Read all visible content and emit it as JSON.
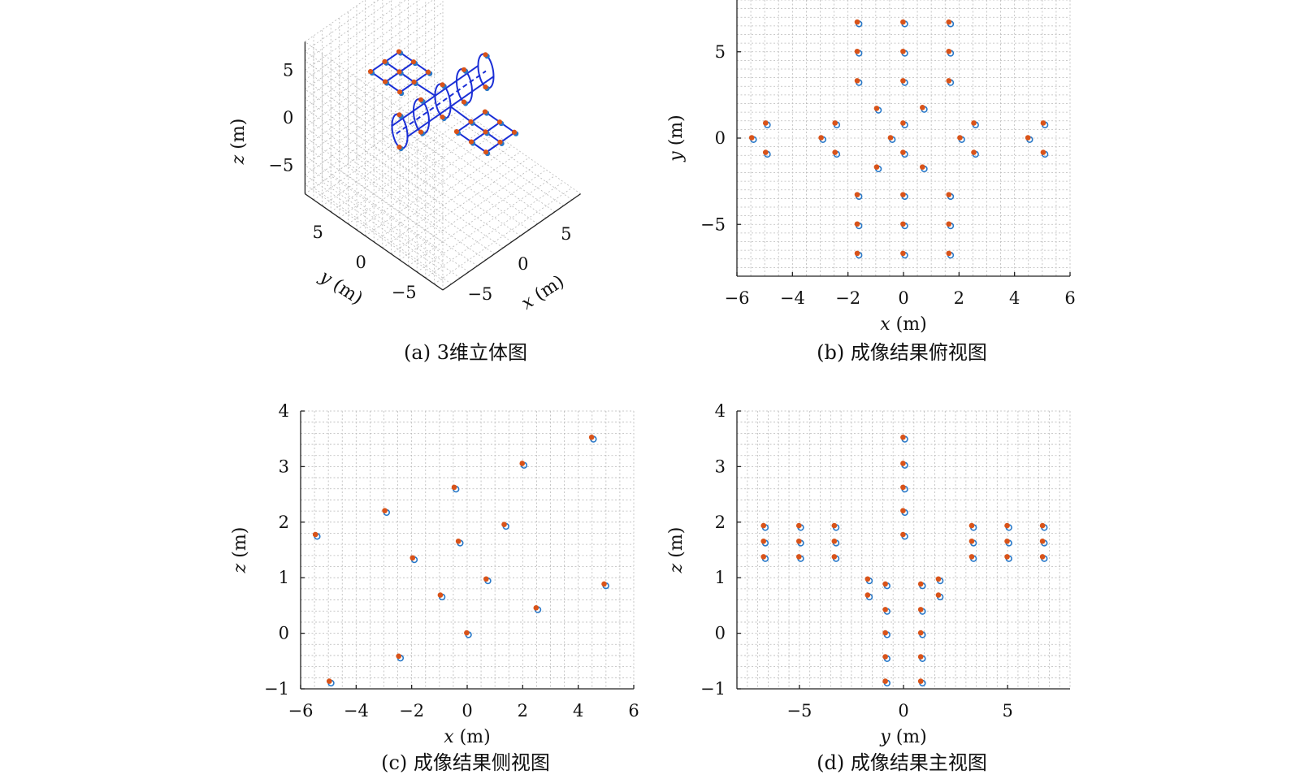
{
  "captions": {
    "a": "(a) 3维立体图",
    "b": "(b) 成像结果俯视图",
    "c": "(c) 成像结果侧视图",
    "d": "(d) 成像结果主视图"
  },
  "colors": {
    "estimated": "#2878c8",
    "true": "#d95319",
    "frame": "#1b2fd6",
    "grid": "#b9b9b9"
  },
  "chart_data": [
    {
      "id": "a",
      "type": "scatter",
      "subtype": "3d",
      "title": "(a) 3维立体图",
      "xlabel": "x (m)",
      "ylabel": "y (m)",
      "zlabel": "z (m)",
      "xlim": [
        -8,
        8
      ],
      "ylim": [
        -8,
        8
      ],
      "zlim": [
        -8,
        8
      ],
      "xticks": [
        -5,
        0,
        5
      ],
      "yticks": [
        -5,
        0,
        5
      ],
      "zticks": [
        -5,
        0,
        5
      ],
      "grid": true,
      "note_series": [
        "reconstructed points",
        "true points",
        "target wireframe"
      ]
    },
    {
      "id": "b",
      "type": "scatter",
      "title": "(b) 成像结果俯视图",
      "xlabel": "x (m)",
      "ylabel": "y (m)",
      "xlim": [
        -6,
        6
      ],
      "ylim": [
        -8,
        8
      ],
      "xticks": [
        -6,
        -4,
        -2,
        0,
        2,
        4,
        6
      ],
      "yticks": [
        -5,
        0,
        5
      ],
      "grid": true,
      "points": [
        [
          -1.65,
          6.7
        ],
        [
          0,
          6.7
        ],
        [
          1.65,
          6.7
        ],
        [
          -1.65,
          5
        ],
        [
          0,
          5
        ],
        [
          1.65,
          5
        ],
        [
          -1.65,
          3.3
        ],
        [
          0,
          3.3
        ],
        [
          1.65,
          3.3
        ],
        [
          -0.95,
          1.7
        ],
        [
          0.7,
          1.75
        ],
        [
          0,
          0.85
        ],
        [
          -5.45,
          0
        ],
        [
          -2.95,
          0
        ],
        [
          -0.45,
          0
        ],
        [
          2.05,
          0
        ],
        [
          4.5,
          0
        ],
        [
          -4.95,
          0.85
        ],
        [
          -2.45,
          0.85
        ],
        [
          2.55,
          0.85
        ],
        [
          5.05,
          0.85
        ],
        [
          -4.95,
          -0.85
        ],
        [
          -2.45,
          -0.85
        ],
        [
          0,
          -0.85
        ],
        [
          2.55,
          -0.85
        ],
        [
          5.05,
          -0.85
        ],
        [
          -0.95,
          -1.7
        ],
        [
          0.7,
          -1.7
        ],
        [
          -1.65,
          -3.3
        ],
        [
          0,
          -3.3
        ],
        [
          1.65,
          -3.3
        ],
        [
          -1.65,
          -5
        ],
        [
          0,
          -5
        ],
        [
          1.65,
          -5
        ],
        [
          -1.65,
          -6.7
        ],
        [
          0,
          -6.7
        ],
        [
          1.65,
          -6.7
        ]
      ]
    },
    {
      "id": "c",
      "type": "scatter",
      "title": "(c) 成像结果侧视图",
      "xlabel": "x (m)",
      "ylabel": "z (m)",
      "xlim": [
        -6,
        6
      ],
      "ylim": [
        -1,
        4
      ],
      "xticks": [
        -6,
        -4,
        -2,
        0,
        2,
        4,
        6
      ],
      "yticks": [
        -1,
        0,
        1,
        2,
        3,
        4
      ],
      "grid": true,
      "points": [
        [
          4.5,
          3.52
        ],
        [
          2.0,
          3.05
        ],
        [
          -0.45,
          2.62
        ],
        [
          -2.95,
          2.2
        ],
        [
          1.35,
          1.95
        ],
        [
          -5.45,
          1.77
        ],
        [
          -0.3,
          1.65
        ],
        [
          -1.95,
          1.35
        ],
        [
          0.7,
          0.97
        ],
        [
          4.95,
          0.88
        ],
        [
          -0.95,
          0.68
        ],
        [
          2.5,
          0.45
        ],
        [
          0,
          0.0
        ],
        [
          -2.45,
          -0.42
        ],
        [
          -4.95,
          -0.87
        ]
      ]
    },
    {
      "id": "d",
      "type": "scatter",
      "title": "(d) 成像结果主视图",
      "xlabel": "y (m)",
      "ylabel": "z (m)",
      "xlim": [
        -8,
        8
      ],
      "ylim": [
        -1,
        4
      ],
      "xticks": [
        -5,
        0,
        5
      ],
      "yticks": [
        -1,
        0,
        1,
        2,
        3,
        4
      ],
      "grid": true,
      "points": [
        [
          0,
          3.52
        ],
        [
          0,
          3.05
        ],
        [
          0,
          2.62
        ],
        [
          0,
          2.2
        ],
        [
          0,
          1.77
        ],
        [
          -6.7,
          1.93
        ],
        [
          -5,
          1.93
        ],
        [
          -3.3,
          1.93
        ],
        [
          3.3,
          1.93
        ],
        [
          5,
          1.93
        ],
        [
          6.7,
          1.93
        ],
        [
          -6.7,
          1.65
        ],
        [
          -5,
          1.65
        ],
        [
          -3.3,
          1.65
        ],
        [
          3.3,
          1.65
        ],
        [
          5,
          1.65
        ],
        [
          6.7,
          1.65
        ],
        [
          -6.7,
          1.37
        ],
        [
          -5,
          1.37
        ],
        [
          -3.3,
          1.37
        ],
        [
          3.3,
          1.37
        ],
        [
          5,
          1.37
        ],
        [
          6.7,
          1.37
        ],
        [
          -1.7,
          0.97
        ],
        [
          1.7,
          0.97
        ],
        [
          -0.85,
          0.88
        ],
        [
          0.85,
          0.88
        ],
        [
          -1.7,
          0.68
        ],
        [
          1.7,
          0.68
        ],
        [
          -0.85,
          0.42
        ],
        [
          0.85,
          0.42
        ],
        [
          -0.85,
          0
        ],
        [
          0.85,
          0
        ],
        [
          -0.85,
          -0.43
        ],
        [
          0.85,
          -0.43
        ],
        [
          -0.85,
          -0.87
        ],
        [
          0.85,
          -0.87
        ]
      ]
    }
  ]
}
